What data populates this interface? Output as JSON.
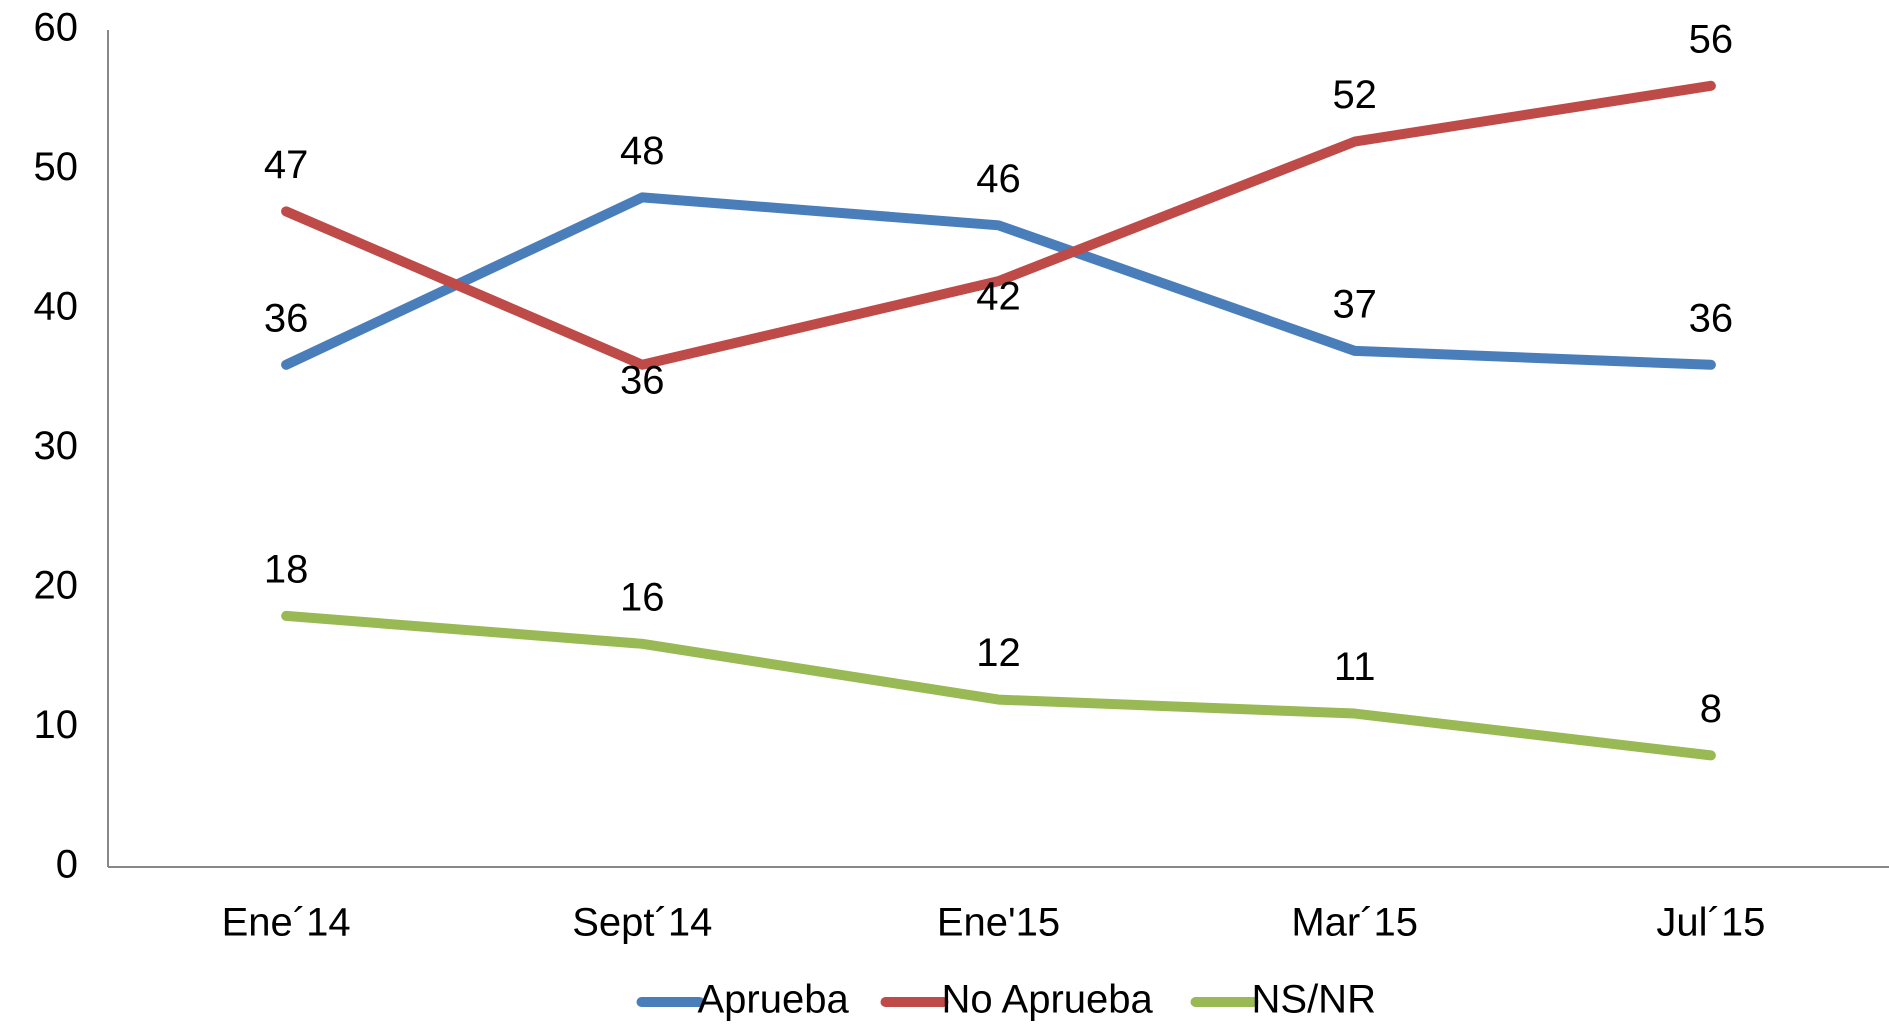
{
  "chart_data": {
    "type": "line",
    "categories": [
      "Ene´14",
      "Sept´14",
      "Ene'15",
      "Mar´15",
      "Jul´15"
    ],
    "series": [
      {
        "name": "Aprueba",
        "color": "#4a7ebb",
        "values": [
          36,
          48,
          46,
          37,
          36
        ]
      },
      {
        "name": "No Aprueba",
        "color": "#be4b48",
        "values": [
          47,
          36,
          42,
          52,
          56
        ]
      },
      {
        "name": "NS/NR",
        "color": "#98b954",
        "values": [
          18,
          16,
          12,
          11,
          8
        ]
      }
    ],
    "ylim": [
      0,
      60
    ],
    "yticks": [
      0,
      10,
      20,
      30,
      40,
      50,
      60
    ],
    "grid": false,
    "legend": "bottom"
  }
}
